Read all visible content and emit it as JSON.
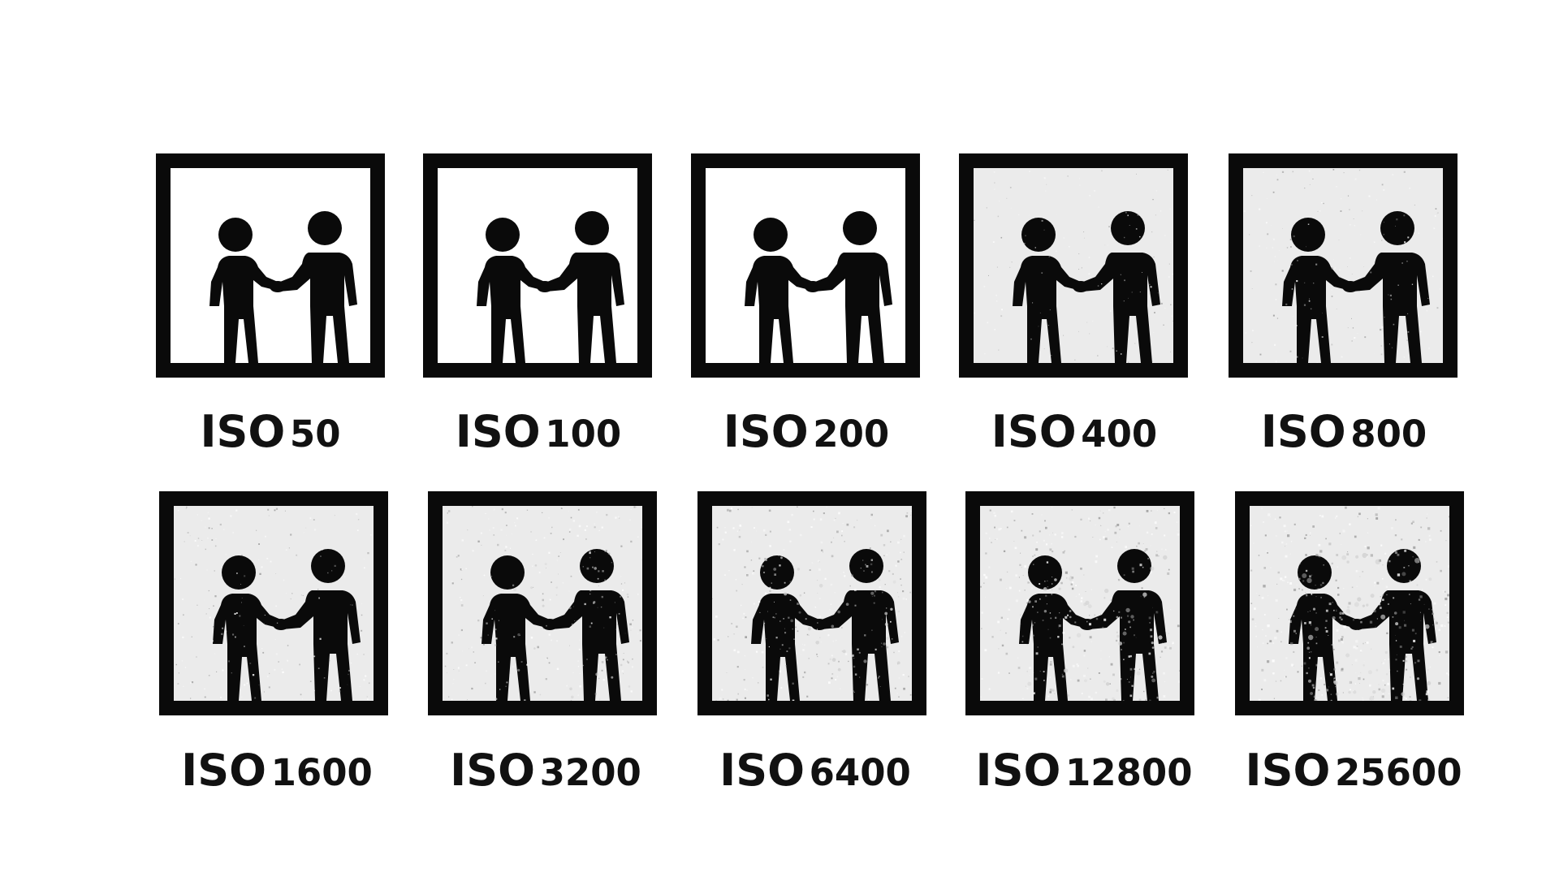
{
  "panels": [
    {
      "iso_label": "ISO",
      "iso_value": "50",
      "noise": 0.0
    },
    {
      "iso_label": "ISO",
      "iso_value": "100",
      "noise": 0.0
    },
    {
      "iso_label": "ISO",
      "iso_value": "200",
      "noise": 0.0
    },
    {
      "iso_label": "ISO",
      "iso_value": "400",
      "noise": 0.15
    },
    {
      "iso_label": "ISO",
      "iso_value": "800",
      "noise": 0.25
    },
    {
      "iso_label": "ISO",
      "iso_value": "1600",
      "noise": 0.35
    },
    {
      "iso_label": "ISO",
      "iso_value": "3200",
      "noise": 0.5
    },
    {
      "iso_label": "ISO",
      "iso_value": "6400",
      "noise": 0.65
    },
    {
      "iso_label": "ISO",
      "iso_value": "12800",
      "noise": 0.8
    },
    {
      "iso_label": "ISO",
      "iso_value": "25600",
      "noise": 1.0
    }
  ],
  "colors": {
    "figure": "#0a0a0a",
    "frame": "#0a0a0a",
    "clean_background": "#ffffff",
    "noisy_background": "#ebebeb"
  },
  "icons": {
    "figure": "two-people-shaking-hands-icon"
  }
}
